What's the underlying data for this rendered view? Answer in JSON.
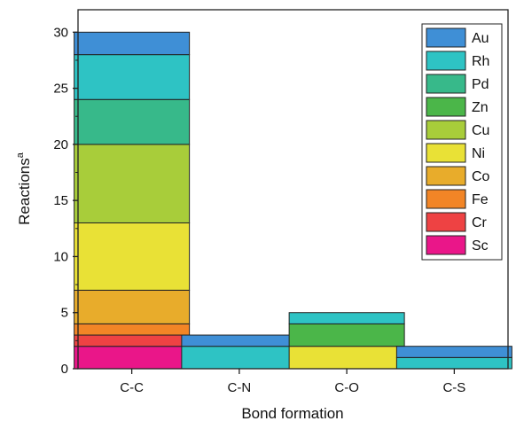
{
  "chart_data": {
    "type": "bar",
    "stacked": true,
    "categories": [
      "C-C",
      "C-N",
      "C-O",
      "C-S"
    ],
    "xlabel": "Bond formation",
    "ylabel": "Reactions",
    "ylabel_superscript": "a",
    "ylim": [
      0,
      32
    ],
    "yticks": [
      0,
      5,
      10,
      15,
      20,
      25,
      30
    ],
    "legend_position": "top-right",
    "grid": false,
    "series": [
      {
        "name": "Sc",
        "color": "#ea1689",
        "values": [
          2,
          0,
          0,
          0
        ]
      },
      {
        "name": "Cr",
        "color": "#ee4243",
        "values": [
          1,
          0,
          0,
          0
        ]
      },
      {
        "name": "Fe",
        "color": "#f28526",
        "values": [
          1,
          0,
          0,
          0
        ]
      },
      {
        "name": "Co",
        "color": "#e8ac2b",
        "values": [
          3,
          0,
          0,
          0
        ]
      },
      {
        "name": "Ni",
        "color": "#e9e136",
        "values": [
          6,
          0,
          2,
          0
        ]
      },
      {
        "name": "Cu",
        "color": "#a8cd3a",
        "values": [
          7,
          0,
          0,
          0
        ]
      },
      {
        "name": "Zn",
        "color": "#4bb649",
        "values": [
          0,
          0,
          2,
          0
        ]
      },
      {
        "name": "Pd",
        "color": "#37b98a",
        "values": [
          4,
          0,
          0,
          0
        ]
      },
      {
        "name": "Rh",
        "color": "#2ec3c4",
        "values": [
          4,
          2,
          1,
          1
        ]
      },
      {
        "name": "Au",
        "color": "#3f8fd6",
        "values": [
          2,
          1,
          0,
          1
        ]
      }
    ]
  }
}
